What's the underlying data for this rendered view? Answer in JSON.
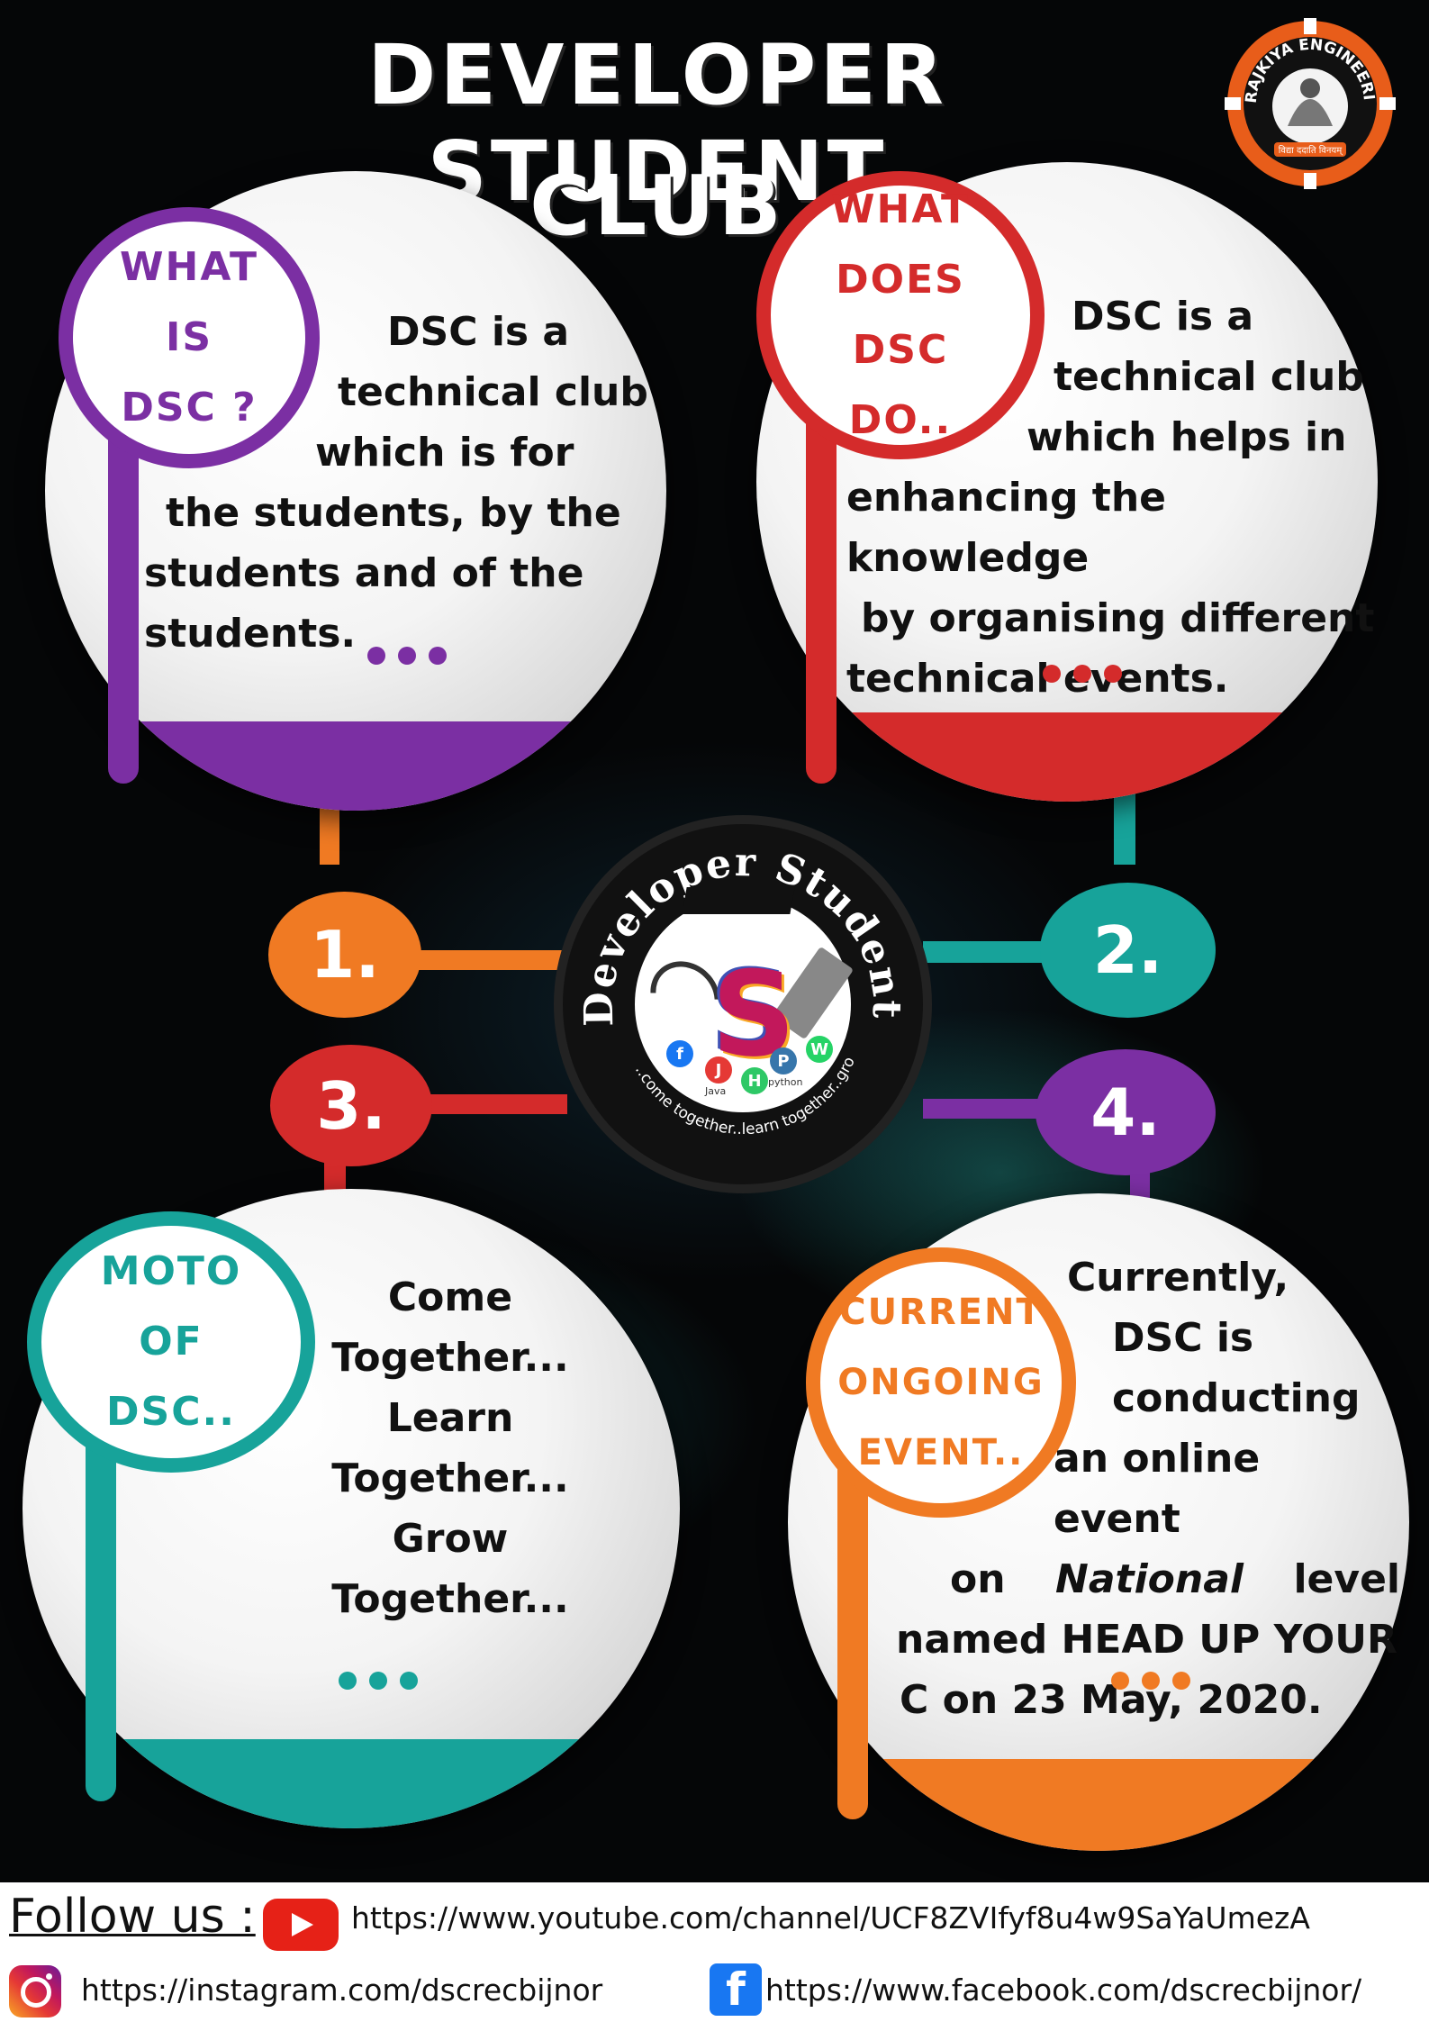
{
  "title": {
    "line1": "DEVELOPER STUDENT",
    "line2": "CLUB"
  },
  "sections": [
    {
      "label": [
        "WHAT",
        "IS",
        "DSC ?"
      ],
      "body": [
        "DSC is a",
        "technical club",
        "which is for",
        "the students, by the",
        "students and of the",
        "students."
      ],
      "color": "#7b2fa3"
    },
    {
      "label": [
        "WHAT",
        "DOES",
        "DSC",
        "DO.."
      ],
      "body": [
        "DSC is a",
        "technical club",
        "which helps in",
        "enhancing the knowledge",
        "by organising different",
        "technical events."
      ],
      "color": "#d42b2b"
    },
    {
      "label": [
        "MOTO",
        "OF",
        "DSC.."
      ],
      "body": [
        "Come",
        "Together...",
        "Learn",
        "Together...",
        "Grow",
        "Together..."
      ],
      "color": "#17a39a"
    },
    {
      "label": [
        "CURRENT",
        "ONGOING",
        "EVENT.."
      ],
      "body": [
        "Currently,",
        "DSC is",
        "conducting",
        "an online event",
        "on",
        "National",
        "level",
        "named HEAD UP YOUR",
        "C on 23 May, 2020."
      ],
      "color": "#f07a23"
    }
  ],
  "numbers": [
    {
      "text": "1.",
      "color": "#f07a23"
    },
    {
      "text": "2.",
      "color": "#17a39a"
    },
    {
      "text": "3.",
      "color": "#d42b2b"
    },
    {
      "text": "4.",
      "color": "#7b2fa3"
    }
  ],
  "logo": {
    "ring_text": "Developer Student Club",
    "tagline": "..come together..learn together..grow together..",
    "chips": [
      {
        "name": "facebook-icon",
        "glyph": "f",
        "color": "#1877f2"
      },
      {
        "name": "java-icon",
        "glyph": "J",
        "color": "#e53935",
        "label": "Java"
      },
      {
        "name": "hackerrank-icon",
        "glyph": "H",
        "color": "#2ec866"
      },
      {
        "name": "python-icon",
        "glyph": "P",
        "color": "#3776ab",
        "label": "python"
      },
      {
        "name": "whatsapp-icon",
        "glyph": "W",
        "color": "#25d366"
      }
    ]
  },
  "college_logo": {
    "ring_text": "RAJKIYA ENGINEERING COLLEGE BIJNOR",
    "motto": "विद्या ददाति विनयम्"
  },
  "footer": {
    "follow_label": "Follow us :",
    "youtube": "https://www.youtube.com/channel/UCF8ZVIfyf8u4w9SaYaUmezA",
    "instagram": "https://instagram.com/dscrecbijnor",
    "facebook": "https://www.facebook.com/dscrecbijnor/"
  }
}
